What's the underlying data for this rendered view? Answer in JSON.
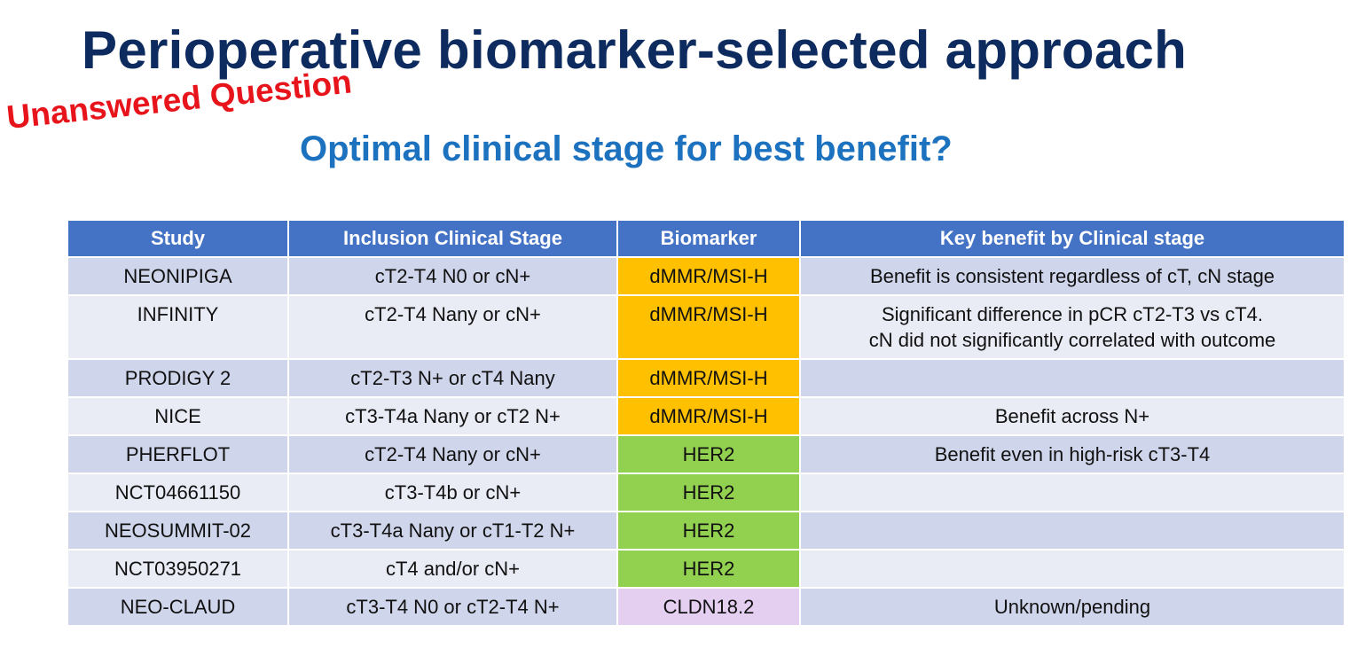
{
  "slide": {
    "title": "Perioperative biomarker-selected approach",
    "stamp": "Unanswered Question",
    "subtitle": "Optimal clinical stage for best benefit?"
  },
  "table": {
    "headers": [
      "Study",
      "Inclusion Clinical Stage",
      "Biomarker",
      "Key benefit by Clinical stage"
    ],
    "rows": [
      {
        "study": "NEONIPIGA",
        "stage": "cT2-T4 N0 or cN+",
        "biomarker": "dMMR/MSI-H",
        "benefit": [
          "Benefit is consistent regardless of cT, cN stage"
        ]
      },
      {
        "study": "INFINITY",
        "stage": "cT2-T4 Nany or cN+",
        "biomarker": "dMMR/MSI-H",
        "benefit": [
          "Significant difference in pCR cT2-T3 vs cT4.",
          "cN did not significantly correlated with outcome"
        ]
      },
      {
        "study": "PRODIGY 2",
        "stage": "cT2-T3 N+ or cT4 Nany",
        "biomarker": "dMMR/MSI-H",
        "benefit": []
      },
      {
        "study": "NICE",
        "stage": "cT3-T4a Nany or cT2 N+",
        "biomarker": "dMMR/MSI-H",
        "benefit": [
          "Benefit across N+"
        ]
      },
      {
        "study": "PHERFLOT",
        "stage": "cT2-T4 Nany or cN+",
        "biomarker": "HER2",
        "benefit": [
          "Benefit even in high-risk cT3-T4"
        ]
      },
      {
        "study": "NCT04661150",
        "stage": "cT3-T4b or cN+",
        "biomarker": "HER2",
        "benefit": []
      },
      {
        "study": "NEOSUMMIT-02",
        "stage": "cT3-T4a Nany or cT1-T2 N+",
        "biomarker": "HER2",
        "benefit": []
      },
      {
        "study": "NCT03950271",
        "stage": "cT4 and/or cN+",
        "biomarker": "HER2",
        "benefit": []
      },
      {
        "study": "NEO-CLAUD",
        "stage": "cT3-T4 N0 or cT2-T4 N+",
        "biomarker": "CLDN18.2",
        "benefit": [
          "Unknown/pending"
        ]
      }
    ]
  },
  "colors": {
    "title": "#0d2b5e",
    "stamp": "#e8141c",
    "subtitle": "#1c72bf",
    "header_bg": "#4472c4",
    "row_dark": "#cfd5ea",
    "row_light": "#e9ebf5",
    "biomarker": {
      "dMMR/MSI-H": "#ffc000",
      "HER2": "#92d050",
      "CLDN18.2": "#e4cff0"
    }
  }
}
